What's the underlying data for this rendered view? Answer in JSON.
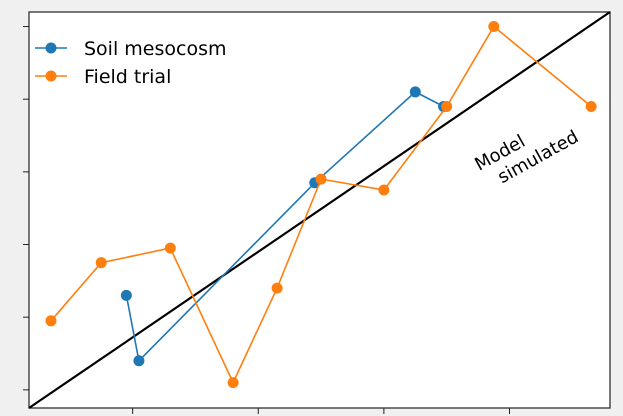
{
  "chart_data": {
    "type": "line",
    "title": "",
    "xlabel": "",
    "ylabel": "",
    "tick_labels_visible": false,
    "x_ticks": [
      2,
      4,
      6,
      8
    ],
    "y_ticks": [
      0,
      1,
      2,
      3,
      4,
      5
    ],
    "xlim": [
      0.35,
      9.6
    ],
    "ylim": [
      -0.25,
      5.2
    ],
    "grid": false,
    "legend_position": "top-left",
    "series": [
      {
        "name": "Soil mesocosm",
        "color": "#1f77b4",
        "points": [
          [
            1.9,
            1.3
          ],
          [
            2.1,
            0.4
          ],
          [
            4.9,
            2.85
          ],
          [
            6.5,
            4.1
          ],
          [
            6.95,
            3.9
          ]
        ]
      },
      {
        "name": "Field trial",
        "color": "#ff7f0e",
        "points": [
          [
            0.7,
            0.95
          ],
          [
            1.5,
            1.75
          ],
          [
            2.6,
            1.95
          ],
          [
            3.6,
            0.1
          ],
          [
            4.3,
            1.4
          ],
          [
            5.0,
            2.9
          ],
          [
            6.0,
            2.75
          ],
          [
            7.0,
            3.9
          ],
          [
            7.75,
            5.0
          ],
          [
            9.3,
            3.9
          ]
        ]
      }
    ],
    "reference_line": {
      "color": "#000000",
      "points": [
        [
          0.35,
          -0.25
        ],
        [
          9.6,
          5.2
        ]
      ]
    },
    "annotation": {
      "lines": [
        "Model",
        "simulated"
      ],
      "anchor": [
        7.6,
        3.05
      ],
      "rotation_deg": -29
    }
  }
}
